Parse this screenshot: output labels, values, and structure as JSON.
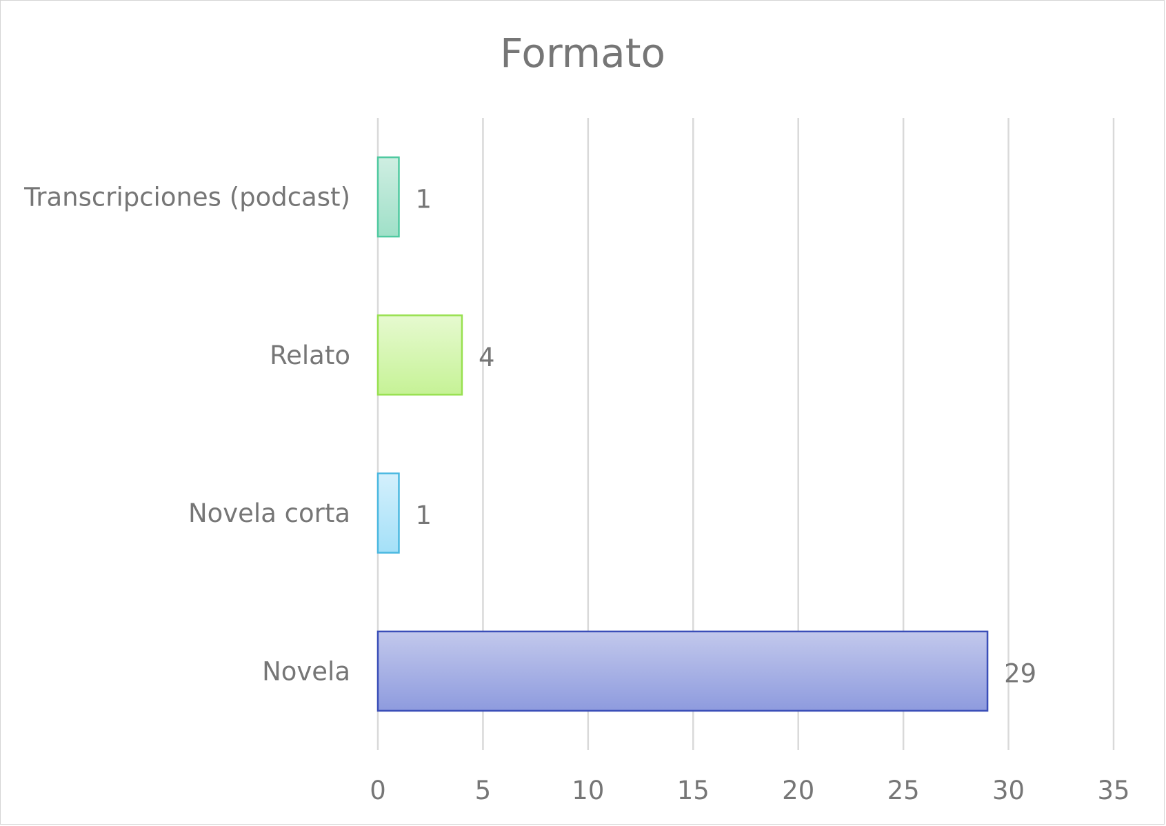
{
  "chart_data": {
    "type": "bar",
    "orientation": "horizontal",
    "title": "Formato",
    "categories": [
      "Transcripciones (podcast)",
      "Relato",
      "Novela corta",
      "Novela"
    ],
    "values": [
      1,
      4,
      1,
      29
    ],
    "data_labels": [
      "1",
      "4",
      "1",
      "29"
    ],
    "xlim": [
      0,
      35
    ],
    "x_ticks": [
      0,
      5,
      10,
      15,
      20,
      25,
      30,
      35
    ],
    "x_tick_labels": [
      "0",
      "5",
      "10",
      "15",
      "20",
      "25",
      "30",
      "35"
    ],
    "xlabel": "",
    "ylabel": "",
    "grid": "vertical",
    "legend": "none",
    "colors": {
      "Transcripciones (podcast)": {
        "fill_top": "#cfeee2",
        "fill_bottom": "#9fe0c8",
        "stroke": "#4fc9a0"
      },
      "Relato": {
        "fill_top": "#e6fad0",
        "fill_bottom": "#c6f296",
        "stroke": "#98e050"
      },
      "Novela corta": {
        "fill_top": "#d4f0fc",
        "fill_bottom": "#a4e0f8",
        "stroke": "#4ab8e0"
      },
      "Novela": {
        "fill_top": "#c2c8ec",
        "fill_bottom": "#8e9bde",
        "stroke": "#3a4eb8"
      }
    },
    "gridline_color": "#d9d9d9",
    "text_color": "#767676"
  }
}
